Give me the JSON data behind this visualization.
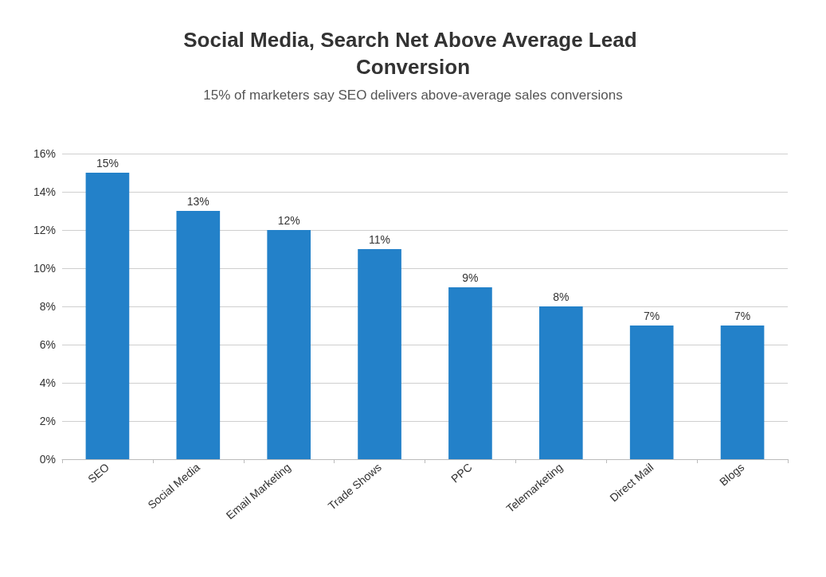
{
  "chart_data": {
    "type": "bar",
    "title": "Social Media, Search Net Above Average Lead Conversion",
    "subtitle": "15% of marketers say SEO delivers above-average sales conversions",
    "categories": [
      "SEO",
      "Social Media",
      "Email Marketing",
      "Trade Shows",
      "PPC",
      "Telemarketing",
      "Direct Mail",
      "Blogs"
    ],
    "values": [
      15,
      13,
      12,
      11,
      9,
      8,
      7,
      7
    ],
    "value_labels": [
      "15%",
      "13%",
      "12%",
      "11%",
      "9%",
      "8%",
      "7%",
      "7%"
    ],
    "color": "#2381c9",
    "ylim": [
      0,
      16
    ],
    "yticks": [
      {
        "value": 0,
        "label": "0%"
      },
      {
        "value": 2,
        "label": "2%"
      },
      {
        "value": 4,
        "label": "4%"
      },
      {
        "value": 6,
        "label": "6%"
      },
      {
        "value": 8,
        "label": "8%"
      },
      {
        "value": 10,
        "label": "10%"
      },
      {
        "value": 12,
        "label": "12%"
      },
      {
        "value": 14,
        "label": "14%"
      },
      {
        "value": 16,
        "label": "16%"
      }
    ],
    "grid": "y"
  }
}
